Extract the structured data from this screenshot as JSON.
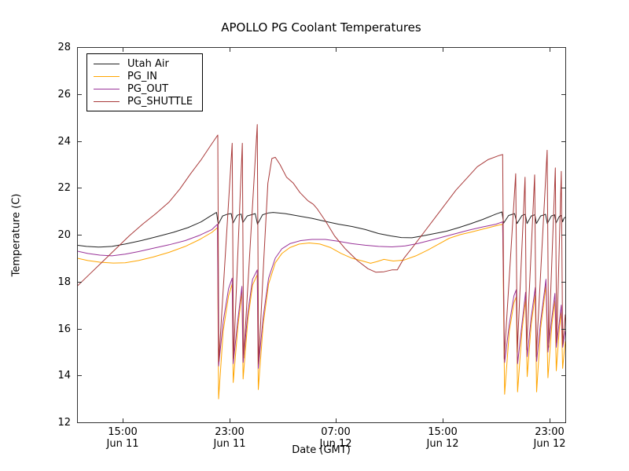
{
  "figure": {
    "title": "APOLLO PG Coolant Temperatures",
    "background": "#ffffff",
    "frame_color": "#333333"
  },
  "chart_data": {
    "type": "line",
    "title": "APOLLO PG Coolant Temperatures",
    "xlabel": "Date (GMT)",
    "ylabel": "Temperature (C)",
    "x_unit": "decimal hours since Jun 11 00:00 GMT",
    "xlim": [
      11.59,
      48.2
    ],
    "ylim": [
      12,
      28
    ],
    "grid": false,
    "legend_position": "upper left",
    "y_ticks": [
      28,
      26,
      24,
      22,
      20,
      18,
      16,
      14,
      12
    ],
    "x_ticks": [
      {
        "value": 15,
        "line1": "15:00",
        "line2": "Jun 11"
      },
      {
        "value": 23,
        "line1": "23:00",
        "line2": "Jun 11"
      },
      {
        "value": 31,
        "line1": "07:00",
        "line2": "Jun 12"
      },
      {
        "value": 39,
        "line1": "15:00",
        "line2": "Jun 12"
      },
      {
        "value": 47,
        "line1": "23:00",
        "line2": "Jun 12"
      }
    ],
    "series": [
      {
        "name": "Utah Air",
        "color": "#222222",
        "points": [
          [
            11.59,
            19.55
          ],
          [
            12.3,
            19.5
          ],
          [
            13.2,
            19.47
          ],
          [
            14.2,
            19.5
          ],
          [
            15.2,
            19.6
          ],
          [
            16.4,
            19.75
          ],
          [
            17.6,
            19.92
          ],
          [
            18.8,
            20.1
          ],
          [
            19.9,
            20.3
          ],
          [
            20.9,
            20.55
          ],
          [
            21.6,
            20.8
          ],
          [
            22.05,
            20.95
          ],
          [
            22.18,
            20.45
          ],
          [
            22.5,
            20.8
          ],
          [
            22.9,
            20.88
          ],
          [
            23.15,
            20.9
          ],
          [
            23.28,
            20.5
          ],
          [
            23.6,
            20.83
          ],
          [
            23.9,
            20.88
          ],
          [
            24.02,
            20.52
          ],
          [
            24.35,
            20.8
          ],
          [
            24.95,
            20.9
          ],
          [
            25.12,
            20.45
          ],
          [
            25.5,
            20.85
          ],
          [
            25.95,
            20.93
          ],
          [
            26.3,
            20.95
          ],
          [
            27.2,
            20.9
          ],
          [
            28.2,
            20.8
          ],
          [
            29.2,
            20.7
          ],
          [
            30.2,
            20.57
          ],
          [
            31.2,
            20.45
          ],
          [
            32.2,
            20.35
          ],
          [
            33.2,
            20.22
          ],
          [
            34.2,
            20.05
          ],
          [
            35.1,
            19.95
          ],
          [
            35.9,
            19.88
          ],
          [
            36.7,
            19.87
          ],
          [
            37.5,
            19.95
          ],
          [
            38.4,
            20.05
          ],
          [
            39.3,
            20.15
          ],
          [
            40.2,
            20.3
          ],
          [
            41.1,
            20.47
          ],
          [
            42.0,
            20.65
          ],
          [
            43.0,
            20.88
          ],
          [
            43.45,
            20.97
          ],
          [
            43.58,
            20.5
          ],
          [
            43.95,
            20.82
          ],
          [
            44.4,
            20.9
          ],
          [
            44.58,
            20.48
          ],
          [
            44.95,
            20.82
          ],
          [
            45.2,
            20.87
          ],
          [
            45.33,
            20.48
          ],
          [
            45.65,
            20.8
          ],
          [
            45.92,
            20.85
          ],
          [
            46.03,
            20.48
          ],
          [
            46.35,
            20.8
          ],
          [
            46.72,
            20.87
          ],
          [
            46.85,
            20.48
          ],
          [
            47.15,
            20.8
          ],
          [
            47.4,
            20.85
          ],
          [
            47.5,
            20.5
          ],
          [
            47.75,
            20.78
          ],
          [
            47.9,
            20.82
          ],
          [
            48.0,
            20.55
          ],
          [
            48.1,
            20.7
          ],
          [
            48.2,
            20.75
          ]
        ]
      },
      {
        "name": "PG_IN",
        "color": "#FFA500",
        "points": [
          [
            11.59,
            19.0
          ],
          [
            12.4,
            18.9
          ],
          [
            13.3,
            18.83
          ],
          [
            14.3,
            18.79
          ],
          [
            15.2,
            18.8
          ],
          [
            16.2,
            18.9
          ],
          [
            17.3,
            19.05
          ],
          [
            18.5,
            19.25
          ],
          [
            19.7,
            19.5
          ],
          [
            20.8,
            19.8
          ],
          [
            21.7,
            20.1
          ],
          [
            22.12,
            20.3
          ],
          [
            22.2,
            13.0
          ],
          [
            22.55,
            15.9
          ],
          [
            22.95,
            17.4
          ],
          [
            23.22,
            17.9
          ],
          [
            23.3,
            13.7
          ],
          [
            23.65,
            16.1
          ],
          [
            23.95,
            17.55
          ],
          [
            24.04,
            13.85
          ],
          [
            24.4,
            16.4
          ],
          [
            24.75,
            17.85
          ],
          [
            25.1,
            18.3
          ],
          [
            25.18,
            13.4
          ],
          [
            25.55,
            16.2
          ],
          [
            25.95,
            17.9
          ],
          [
            26.45,
            18.8
          ],
          [
            26.95,
            19.2
          ],
          [
            27.55,
            19.45
          ],
          [
            28.25,
            19.6
          ],
          [
            29.0,
            19.65
          ],
          [
            29.8,
            19.6
          ],
          [
            30.6,
            19.45
          ],
          [
            31.4,
            19.2
          ],
          [
            32.2,
            19.0
          ],
          [
            33.0,
            18.88
          ],
          [
            33.6,
            18.78
          ],
          [
            34.05,
            18.85
          ],
          [
            34.6,
            18.95
          ],
          [
            35.3,
            18.88
          ],
          [
            36.1,
            18.92
          ],
          [
            37.0,
            19.1
          ],
          [
            37.9,
            19.35
          ],
          [
            38.7,
            19.6
          ],
          [
            39.5,
            19.85
          ],
          [
            40.3,
            20.0
          ],
          [
            41.2,
            20.12
          ],
          [
            42.1,
            20.25
          ],
          [
            43.0,
            20.38
          ],
          [
            43.5,
            20.45
          ],
          [
            43.65,
            13.2
          ],
          [
            44.0,
            15.9
          ],
          [
            44.35,
            17.1
          ],
          [
            44.52,
            17.35
          ],
          [
            44.62,
            13.3
          ],
          [
            44.95,
            15.9
          ],
          [
            45.22,
            17.25
          ],
          [
            45.34,
            13.95
          ],
          [
            45.65,
            16.2
          ],
          [
            45.95,
            17.45
          ],
          [
            46.05,
            13.3
          ],
          [
            46.35,
            16.0
          ],
          [
            46.75,
            17.85
          ],
          [
            46.9,
            13.9
          ],
          [
            47.2,
            16.2
          ],
          [
            47.42,
            17.2
          ],
          [
            47.52,
            14.2
          ],
          [
            47.75,
            16.0
          ],
          [
            47.9,
            16.7
          ],
          [
            48.0,
            14.3
          ],
          [
            48.12,
            15.0
          ],
          [
            48.2,
            15.45
          ]
        ]
      },
      {
        "name": "PG_OUT",
        "color": "#993399",
        "points": [
          [
            11.59,
            19.3
          ],
          [
            12.4,
            19.2
          ],
          [
            13.3,
            19.13
          ],
          [
            14.2,
            19.1
          ],
          [
            15.2,
            19.17
          ],
          [
            16.2,
            19.28
          ],
          [
            17.3,
            19.42
          ],
          [
            18.5,
            19.57
          ],
          [
            19.7,
            19.75
          ],
          [
            20.8,
            19.98
          ],
          [
            21.7,
            20.22
          ],
          [
            22.12,
            20.45
          ],
          [
            22.2,
            14.4
          ],
          [
            22.55,
            16.3
          ],
          [
            22.95,
            17.7
          ],
          [
            23.22,
            18.15
          ],
          [
            23.3,
            14.5
          ],
          [
            23.65,
            16.4
          ],
          [
            23.95,
            17.8
          ],
          [
            24.04,
            14.55
          ],
          [
            24.4,
            16.7
          ],
          [
            24.75,
            18.1
          ],
          [
            25.1,
            18.5
          ],
          [
            25.18,
            14.3
          ],
          [
            25.55,
            16.5
          ],
          [
            25.95,
            18.15
          ],
          [
            26.45,
            19.0
          ],
          [
            26.95,
            19.4
          ],
          [
            27.55,
            19.62
          ],
          [
            28.35,
            19.75
          ],
          [
            29.2,
            19.8
          ],
          [
            30.2,
            19.8
          ],
          [
            31.2,
            19.72
          ],
          [
            32.2,
            19.62
          ],
          [
            33.2,
            19.55
          ],
          [
            34.2,
            19.5
          ],
          [
            35.2,
            19.48
          ],
          [
            36.2,
            19.52
          ],
          [
            37.1,
            19.62
          ],
          [
            38.0,
            19.75
          ],
          [
            39.0,
            19.9
          ],
          [
            40.0,
            20.05
          ],
          [
            41.0,
            20.2
          ],
          [
            42.0,
            20.33
          ],
          [
            43.0,
            20.45
          ],
          [
            43.5,
            20.55
          ],
          [
            43.65,
            14.55
          ],
          [
            44.0,
            16.2
          ],
          [
            44.35,
            17.4
          ],
          [
            44.52,
            17.65
          ],
          [
            44.62,
            14.5
          ],
          [
            44.95,
            16.2
          ],
          [
            45.22,
            17.55
          ],
          [
            45.34,
            14.8
          ],
          [
            45.65,
            16.5
          ],
          [
            45.95,
            17.75
          ],
          [
            46.05,
            14.6
          ],
          [
            46.35,
            16.3
          ],
          [
            46.75,
            18.1
          ],
          [
            46.9,
            15.0
          ],
          [
            47.2,
            16.5
          ],
          [
            47.42,
            17.5
          ],
          [
            47.52,
            15.2
          ],
          [
            47.75,
            16.3
          ],
          [
            47.9,
            17.0
          ],
          [
            48.0,
            15.2
          ],
          [
            48.12,
            15.6
          ],
          [
            48.2,
            15.9
          ]
        ]
      },
      {
        "name": "PG_SHUTTLE",
        "color": "#A93A3A",
        "points": [
          [
            11.59,
            17.8
          ],
          [
            12.5,
            18.3
          ],
          [
            13.5,
            18.85
          ],
          [
            14.5,
            19.4
          ],
          [
            15.5,
            19.95
          ],
          [
            16.5,
            20.45
          ],
          [
            17.5,
            20.9
          ],
          [
            18.5,
            21.4
          ],
          [
            19.3,
            21.95
          ],
          [
            20.1,
            22.6
          ],
          [
            20.9,
            23.2
          ],
          [
            21.6,
            23.8
          ],
          [
            22.14,
            24.25
          ],
          [
            22.22,
            14.6
          ],
          [
            23.22,
            23.9
          ],
          [
            23.32,
            14.7
          ],
          [
            23.98,
            23.9
          ],
          [
            24.08,
            14.75
          ],
          [
            25.1,
            24.7
          ],
          [
            25.2,
            14.5
          ],
          [
            25.6,
            19.0
          ],
          [
            25.9,
            22.2
          ],
          [
            26.2,
            23.25
          ],
          [
            26.45,
            23.3
          ],
          [
            26.8,
            23.0
          ],
          [
            27.3,
            22.45
          ],
          [
            27.8,
            22.2
          ],
          [
            28.3,
            21.8
          ],
          [
            28.9,
            21.45
          ],
          [
            29.3,
            21.3
          ],
          [
            29.6,
            21.1
          ],
          [
            30.2,
            20.6
          ],
          [
            30.9,
            19.95
          ],
          [
            31.7,
            19.4
          ],
          [
            32.6,
            18.9
          ],
          [
            33.4,
            18.55
          ],
          [
            34.0,
            18.4
          ],
          [
            34.6,
            18.42
          ],
          [
            35.2,
            18.5
          ],
          [
            35.6,
            18.5
          ],
          [
            36.1,
            19.0
          ],
          [
            36.8,
            19.5
          ],
          [
            37.6,
            20.1
          ],
          [
            38.4,
            20.7
          ],
          [
            39.2,
            21.3
          ],
          [
            40.0,
            21.9
          ],
          [
            40.8,
            22.4
          ],
          [
            41.6,
            22.9
          ],
          [
            42.4,
            23.2
          ],
          [
            43.2,
            23.37
          ],
          [
            43.5,
            23.42
          ],
          [
            43.62,
            14.7
          ],
          [
            44.48,
            22.6
          ],
          [
            44.6,
            15.0
          ],
          [
            45.18,
            22.45
          ],
          [
            45.3,
            15.1
          ],
          [
            45.9,
            22.55
          ],
          [
            46.02,
            14.8
          ],
          [
            46.84,
            23.6
          ],
          [
            46.95,
            15.2
          ],
          [
            47.45,
            22.85
          ],
          [
            47.55,
            15.4
          ],
          [
            47.9,
            22.7
          ],
          [
            48.0,
            15.3
          ],
          [
            48.2,
            16.6
          ]
        ]
      }
    ]
  }
}
